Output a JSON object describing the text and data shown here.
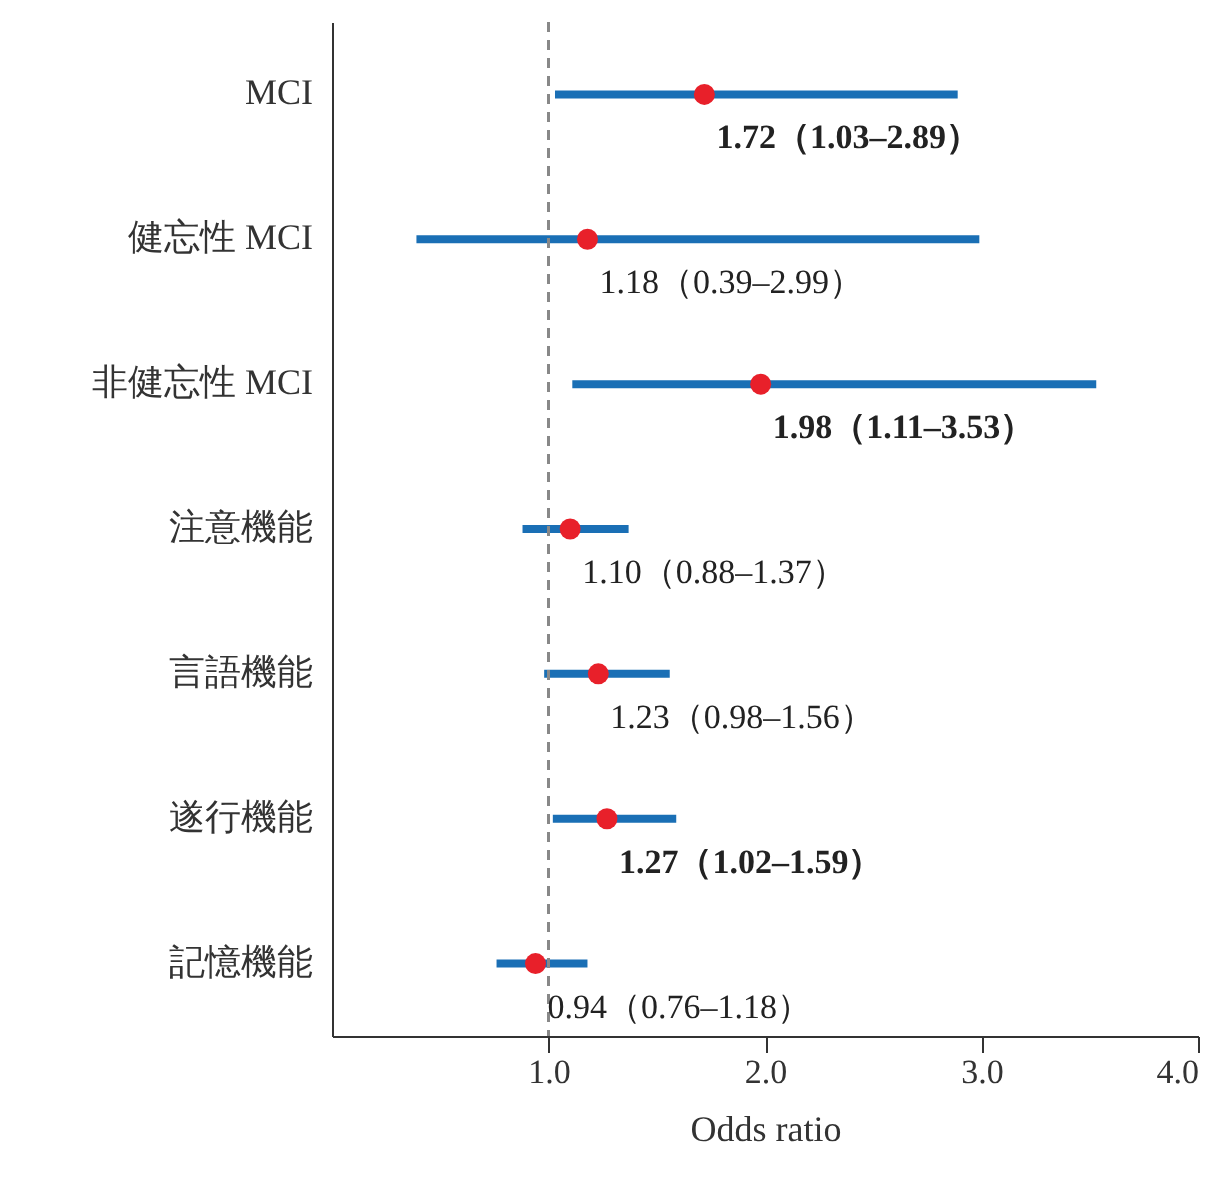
{
  "chart_data": {
    "type": "scatter",
    "orientation": "horizontal",
    "xlabel": "Odds ratio",
    "categories": [
      "MCI",
      "健忘性 MCI",
      "非健忘性 MCI",
      "注意機能",
      "言語機能",
      "遂行機能",
      "記憶機能"
    ],
    "values": [
      1.72,
      1.18,
      1.98,
      1.1,
      1.23,
      1.27,
      0.94
    ],
    "errors": [
      [
        1.03,
        2.89
      ],
      [
        0.39,
        2.99
      ],
      [
        1.11,
        3.53
      ],
      [
        0.88,
        1.37
      ],
      [
        0.98,
        1.56
      ],
      [
        1.02,
        1.59
      ],
      [
        0.76,
        1.18
      ]
    ],
    "value_labels": [
      "1.72（1.03–2.89）",
      "1.18（0.39–2.99）",
      "1.98（1.11–3.53）",
      "1.10（0.88–1.37）",
      "1.23（0.98–1.56）",
      "1.27（1.02–1.59）",
      "0.94（0.76–1.18）"
    ],
    "color": "#e8202a",
    "marker": "circle",
    "grid": false,
    "xlim": [
      0,
      4
    ],
    "xticks": [
      {
        "value": 1,
        "label": "1.0"
      },
      {
        "value": 2,
        "label": "2.0"
      },
      {
        "value": 3,
        "label": "3.0"
      },
      {
        "value": 4,
        "label": "4.0"
      }
    ],
    "ref_lines": [
      {
        "axis": "x",
        "value": 1,
        "color": "#888888",
        "line_style": "dashed"
      }
    ]
  }
}
